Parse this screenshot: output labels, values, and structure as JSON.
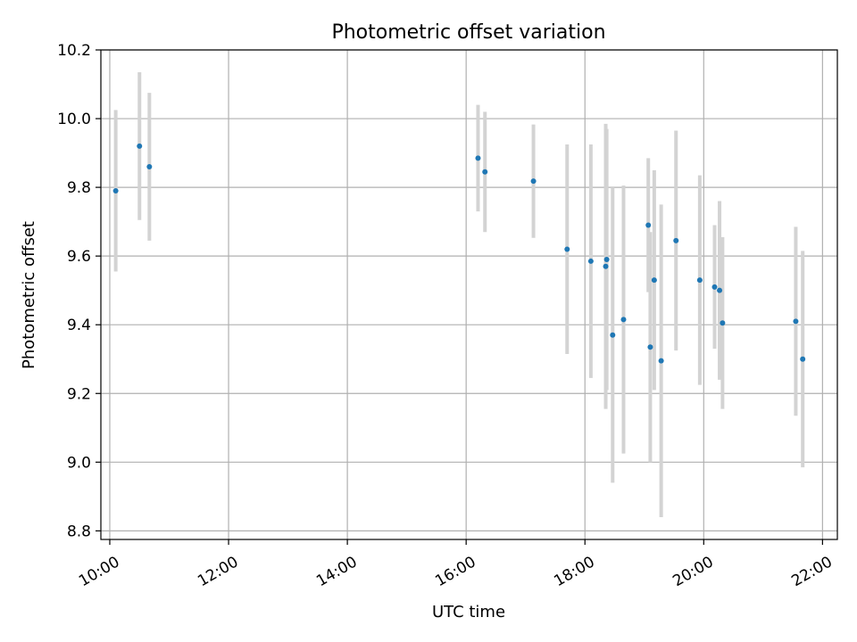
{
  "chart_data": {
    "type": "scatter",
    "title": "Photometric offset variation",
    "xlabel": "UTC time",
    "ylabel": "Photometric offset",
    "x_ticks": [
      "10:00",
      "12:00",
      "14:00",
      "16:00",
      "18:00",
      "20:00",
      "22:00"
    ],
    "y_ticks": [
      "8.8",
      "9.0",
      "9.2",
      "9.4",
      "9.6",
      "9.8",
      "10.0",
      "10.2"
    ],
    "xlim": [
      "09:51",
      "22:15"
    ],
    "ylim": [
      8.775,
      10.2
    ],
    "grid": true,
    "legend": "none",
    "x_axis_format": "HH:MM",
    "colors": {
      "marker": "#1f77b4",
      "errorbar": "#d3d3d3",
      "grid": "#b0b0b0"
    },
    "points": [
      {
        "x": "10:06",
        "y": 9.79,
        "yerr": 0.235
      },
      {
        "x": "10:30",
        "y": 9.92,
        "yerr": 0.215
      },
      {
        "x": "10:40",
        "y": 9.86,
        "yerr": 0.215
      },
      {
        "x": "16:12",
        "y": 9.885,
        "yerr": 0.155
      },
      {
        "x": "16:19",
        "y": 9.845,
        "yerr": 0.175
      },
      {
        "x": "17:08",
        "y": 9.818,
        "yerr": 0.165
      },
      {
        "x": "17:42",
        "y": 9.62,
        "yerr": 0.305
      },
      {
        "x": "18:06",
        "y": 9.585,
        "yerr": 0.34
      },
      {
        "x": "18:21",
        "y": 9.57,
        "yerr": 0.415
      },
      {
        "x": "18:22",
        "y": 9.59,
        "yerr": 0.38
      },
      {
        "x": "18:28",
        "y": 9.37,
        "yerr": 0.43
      },
      {
        "x": "18:39",
        "y": 9.415,
        "yerr": 0.39
      },
      {
        "x": "19:04",
        "y": 9.69,
        "yerr": 0.195
      },
      {
        "x": "19:06",
        "y": 9.335,
        "yerr": 0.335
      },
      {
        "x": "19:10",
        "y": 9.53,
        "yerr": 0.32
      },
      {
        "x": "19:17",
        "y": 9.295,
        "yerr": 0.455
      },
      {
        "x": "19:32",
        "y": 9.645,
        "yerr": 0.32
      },
      {
        "x": "19:56",
        "y": 9.53,
        "yerr": 0.305
      },
      {
        "x": "20:11",
        "y": 9.51,
        "yerr": 0.18
      },
      {
        "x": "20:16",
        "y": 9.5,
        "yerr": 0.26
      },
      {
        "x": "20:19",
        "y": 9.405,
        "yerr": 0.25
      },
      {
        "x": "21:33",
        "y": 9.41,
        "yerr": 0.275
      },
      {
        "x": "21:40",
        "y": 9.3,
        "yerr": 0.315
      }
    ]
  }
}
